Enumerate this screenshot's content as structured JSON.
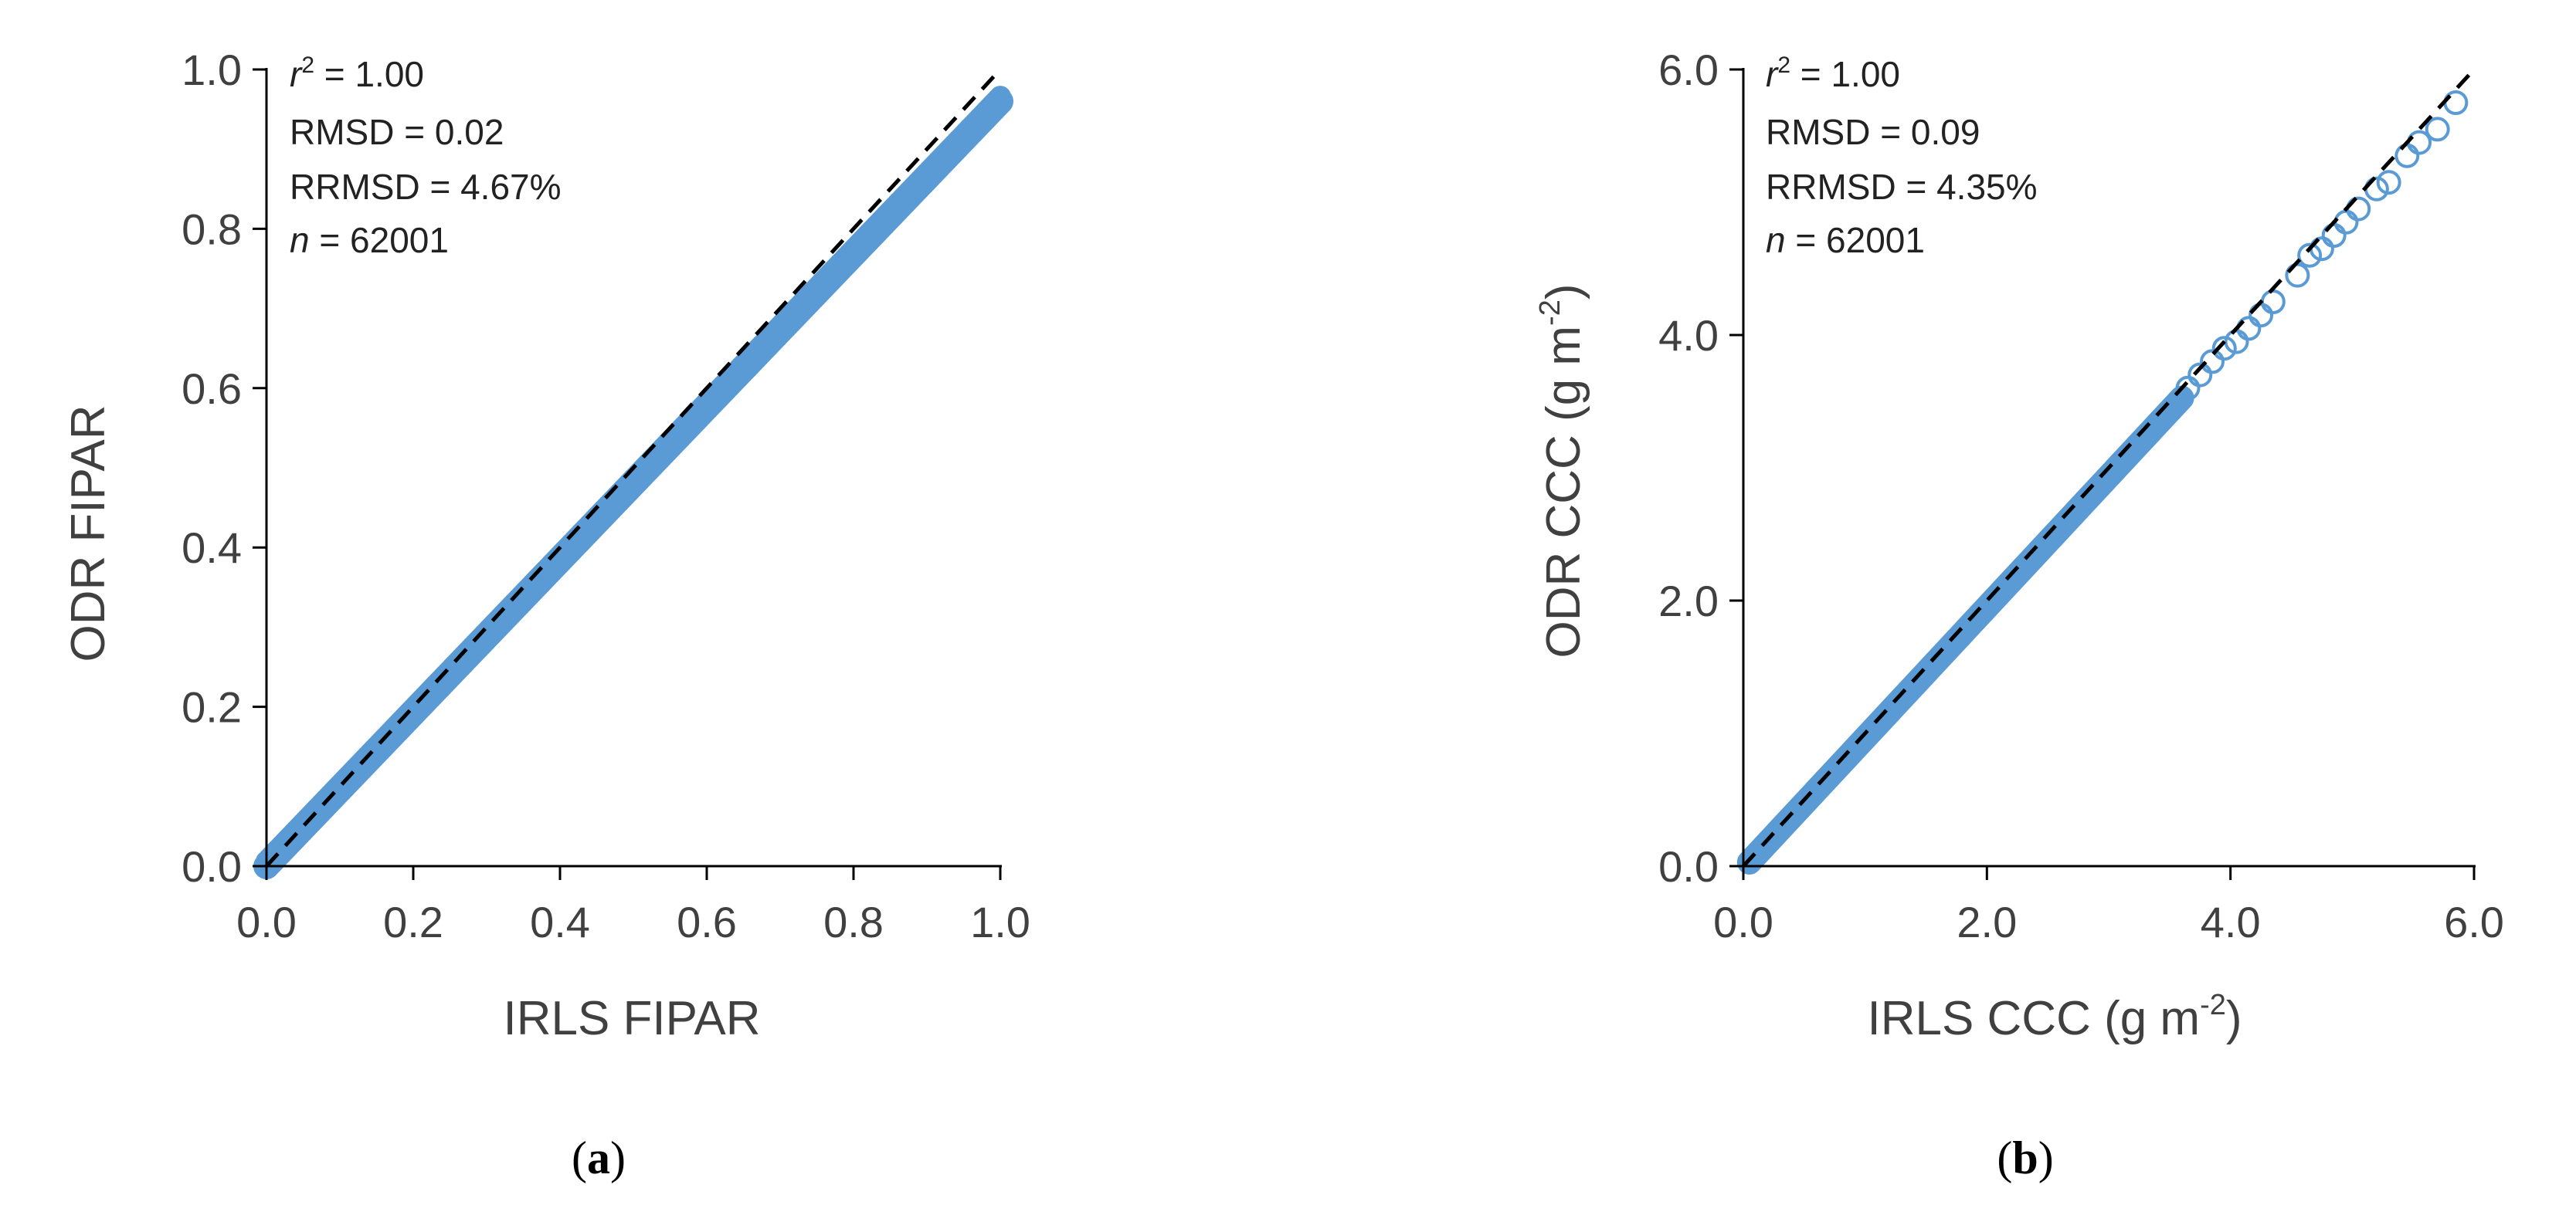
{
  "figure": {
    "colors": {
      "marker": "#5B9BD5",
      "axis": "#000000",
      "text": "#404040",
      "reference_line": "#000000"
    }
  },
  "chart_data": [
    {
      "panel_label": "a",
      "type": "scatter",
      "xlabel": "IRLS FIPAR",
      "ylabel": "ODR FIPAR",
      "xlim": [
        0.0,
        1.0
      ],
      "ylim": [
        0.0,
        1.0
      ],
      "xticks": [
        "0.0",
        "0.2",
        "0.4",
        "0.6",
        "0.8",
        "1.0"
      ],
      "yticks": [
        "0.0",
        "0.2",
        "0.4",
        "0.6",
        "0.8",
        "1.0"
      ],
      "grid": false,
      "reference_line": "1:1 dashed",
      "marker": "filled circle",
      "stats": {
        "r2": "1.00",
        "rmsd": "0.02",
        "rrmsd": "4.67%",
        "n": "62001"
      },
      "series_fit": {
        "slope": 0.96,
        "intercept": 0.0,
        "x_range": [
          0.0,
          1.0
        ]
      }
    },
    {
      "panel_label": "b",
      "type": "scatter",
      "xlabel": "IRLS CCC (g m",
      "xlabel_sup": "-2",
      "ylabel": "ODR CCC (g m",
      "ylabel_sup": "-2",
      "xlim": [
        0.0,
        6.0
      ],
      "ylim": [
        0.0,
        6.0
      ],
      "xticks": [
        "0.0",
        "2.0",
        "4.0",
        "6.0"
      ],
      "yticks": [
        "0.0",
        "2.0",
        "4.0",
        "6.0"
      ],
      "grid": false,
      "reference_line": "1:1 dashed",
      "marker": "open circle",
      "stats": {
        "r2": "1.00",
        "rmsd": "0.09",
        "rrmsd": "4.35%",
        "n": "62001"
      },
      "series_fit": {
        "slope": 0.985,
        "intercept": -0.02,
        "x_range": [
          0.05,
          3.6
        ]
      },
      "sparse_points": [
        {
          "x": 3.65,
          "y": 3.6
        },
        {
          "x": 3.75,
          "y": 3.7
        },
        {
          "x": 3.85,
          "y": 3.8
        },
        {
          "x": 3.95,
          "y": 3.9
        },
        {
          "x": 4.05,
          "y": 3.95
        },
        {
          "x": 4.15,
          "y": 4.05
        },
        {
          "x": 4.25,
          "y": 4.15
        },
        {
          "x": 4.35,
          "y": 4.25
        },
        {
          "x": 4.55,
          "y": 4.45
        },
        {
          "x": 4.65,
          "y": 4.6
        },
        {
          "x": 4.75,
          "y": 4.65
        },
        {
          "x": 4.85,
          "y": 4.75
        },
        {
          "x": 4.95,
          "y": 4.85
        },
        {
          "x": 5.05,
          "y": 4.95
        },
        {
          "x": 5.2,
          "y": 5.1
        },
        {
          "x": 5.3,
          "y": 5.15
        },
        {
          "x": 5.45,
          "y": 5.35
        },
        {
          "x": 5.55,
          "y": 5.45
        },
        {
          "x": 5.7,
          "y": 5.55
        },
        {
          "x": 5.85,
          "y": 5.75
        }
      ]
    }
  ]
}
